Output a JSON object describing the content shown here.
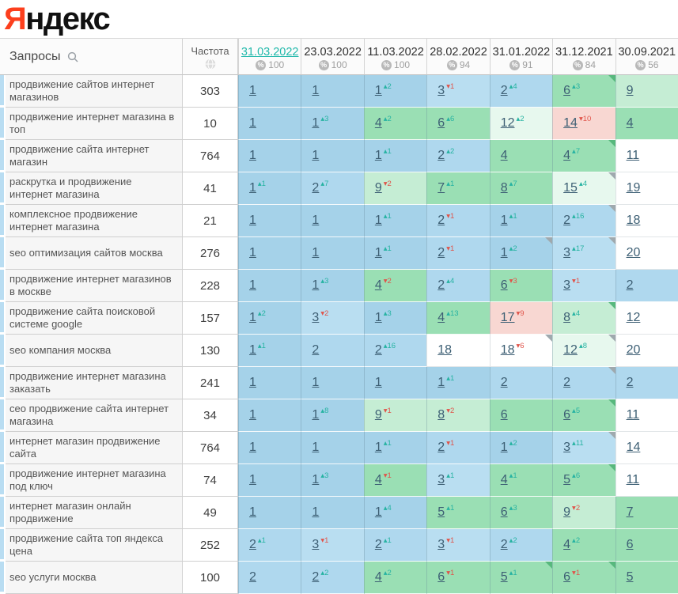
{
  "logo": {
    "letter_accent": "Я",
    "letter_rest": "ндекс"
  },
  "colors": {
    "accent_date_link": "#1fb8aa",
    "delta_up": "#26b3a2",
    "delta_down": "#e0544a",
    "cell_blue": "#a5d2e9",
    "cell_green": "#9adfb4",
    "cell_light_green": "#c5edd4",
    "cell_mint": "#e7f8ee",
    "cell_pink": "#f8d7d2",
    "logo_red": "#fc3f1d"
  },
  "icons": {
    "search": "magnifier",
    "frequency": "globe",
    "coverage": "percent-circle",
    "delta_up_glyph": "▴",
    "delta_down_glyph": "▾"
  },
  "table": {
    "query_header": "Запросы",
    "frequency_header": "Частота",
    "percent_symbol": "%",
    "date_columns": [
      {
        "date": "31.03.2022",
        "percent": "100",
        "active": true
      },
      {
        "date": "23.03.2022",
        "percent": "100",
        "active": false
      },
      {
        "date": "11.03.2022",
        "percent": "100",
        "active": false
      },
      {
        "date": "28.02.2022",
        "percent": "94",
        "active": false
      },
      {
        "date": "31.01.2022",
        "percent": "91",
        "active": false
      },
      {
        "date": "31.12.2021",
        "percent": "84",
        "active": false
      },
      {
        "date": "30.09.2021",
        "percent": "56",
        "active": false
      }
    ],
    "rows": [
      {
        "query": "продвижение сайтов интернет магазинов",
        "frequency": "303",
        "cells": [
          {
            "p": 1,
            "bg": "b1"
          },
          {
            "p": 1,
            "bg": "b1"
          },
          {
            "p": 1,
            "d": 2,
            "bg": "b1"
          },
          {
            "p": 3,
            "d": -1,
            "bg": "b3"
          },
          {
            "p": 2,
            "d": 4,
            "bg": "b2"
          },
          {
            "p": 6,
            "d": 3,
            "bg": "g",
            "corner": true
          },
          {
            "p": 9,
            "bg": "lg"
          }
        ]
      },
      {
        "query": "продвижение интернет магазина в топ",
        "frequency": "10",
        "cells": [
          {
            "p": 1,
            "bg": "b1"
          },
          {
            "p": 1,
            "d": 3,
            "bg": "b1"
          },
          {
            "p": 4,
            "d": 2,
            "bg": "g"
          },
          {
            "p": 6,
            "d": 6,
            "bg": "g"
          },
          {
            "p": 12,
            "d": 2,
            "bg": "ml"
          },
          {
            "p": 14,
            "d": -10,
            "bg": "pk"
          },
          {
            "p": 4,
            "bg": "g"
          }
        ]
      },
      {
        "query": "продвижение сайта интернет магазин",
        "frequency": "764",
        "cells": [
          {
            "p": 1,
            "bg": "b1"
          },
          {
            "p": 1,
            "bg": "b1"
          },
          {
            "p": 1,
            "d": 1,
            "bg": "b1"
          },
          {
            "p": 2,
            "d": 2,
            "bg": "b2"
          },
          {
            "p": 4,
            "bg": "g"
          },
          {
            "p": 4,
            "d": 7,
            "bg": "g",
            "corner": true
          },
          {
            "p": 11,
            "bg": "wh"
          }
        ]
      },
      {
        "query": "раскрутка и продвижение интернет магазина",
        "frequency": "41",
        "cells": [
          {
            "p": 1,
            "d": 1,
            "bg": "b1"
          },
          {
            "p": 2,
            "d": 7,
            "bg": "b2"
          },
          {
            "p": 9,
            "d": -2,
            "bg": "lg"
          },
          {
            "p": 7,
            "d": 1,
            "bg": "g"
          },
          {
            "p": 8,
            "d": 7,
            "bg": "g"
          },
          {
            "p": 15,
            "d": 4,
            "bg": "ml",
            "corner": true
          },
          {
            "p": 19,
            "bg": "wh"
          }
        ]
      },
      {
        "query": "комплексное продвижение интернет магазина",
        "frequency": "21",
        "cells": [
          {
            "p": 1,
            "bg": "b1"
          },
          {
            "p": 1,
            "bg": "b1"
          },
          {
            "p": 1,
            "d": 1,
            "bg": "b1"
          },
          {
            "p": 2,
            "d": -1,
            "bg": "b2"
          },
          {
            "p": 1,
            "d": 1,
            "bg": "b1"
          },
          {
            "p": 2,
            "d": 16,
            "bg": "b2",
            "corner": true
          },
          {
            "p": 18,
            "bg": "wh"
          }
        ]
      },
      {
        "query": "seo оптимизация сайтов москва",
        "frequency": "276",
        "cells": [
          {
            "p": 1,
            "bg": "b1"
          },
          {
            "p": 1,
            "bg": "b1"
          },
          {
            "p": 1,
            "d": 1,
            "bg": "b1"
          },
          {
            "p": 2,
            "d": -1,
            "bg": "b2"
          },
          {
            "p": 1,
            "d": 2,
            "bg": "b1",
            "corner": true
          },
          {
            "p": 3,
            "d": 17,
            "bg": "b3",
            "corner": true
          },
          {
            "p": 20,
            "bg": "wh"
          }
        ]
      },
      {
        "query": "продвижение интернет магазинов в москве",
        "frequency": "228",
        "cells": [
          {
            "p": 1,
            "bg": "b1"
          },
          {
            "p": 1,
            "d": 3,
            "bg": "b1"
          },
          {
            "p": 4,
            "d": -2,
            "bg": "g"
          },
          {
            "p": 2,
            "d": 4,
            "bg": "b2"
          },
          {
            "p": 6,
            "d": -3,
            "bg": "g"
          },
          {
            "p": 3,
            "d": -1,
            "bg": "b3"
          },
          {
            "p": 2,
            "bg": "b2"
          }
        ]
      },
      {
        "query": "продвижение сайта поисковой системе google",
        "frequency": "157",
        "cells": [
          {
            "p": 1,
            "d": 2,
            "bg": "b1"
          },
          {
            "p": 3,
            "d": -2,
            "bg": "b3"
          },
          {
            "p": 1,
            "d": 3,
            "bg": "b1"
          },
          {
            "p": 4,
            "d": 13,
            "bg": "g"
          },
          {
            "p": 17,
            "d": -9,
            "bg": "pk"
          },
          {
            "p": 8,
            "d": 4,
            "bg": "lg",
            "corner": true
          },
          {
            "p": 12,
            "bg": "wh"
          }
        ]
      },
      {
        "query": "seo компания москва",
        "frequency": "130",
        "cells": [
          {
            "p": 1,
            "d": 1,
            "bg": "b1"
          },
          {
            "p": 2,
            "bg": "b2"
          },
          {
            "p": 2,
            "d": 16,
            "bg": "b2"
          },
          {
            "p": 18,
            "bg": "wh"
          },
          {
            "p": 18,
            "d": -6,
            "bg": "wh",
            "corner": true
          },
          {
            "p": 12,
            "d": 8,
            "bg": "ml",
            "corner": true
          },
          {
            "p": 20,
            "bg": "wh"
          }
        ]
      },
      {
        "query": "продвижение интернет магазина заказать",
        "frequency": "241",
        "cells": [
          {
            "p": 1,
            "bg": "b1"
          },
          {
            "p": 1,
            "bg": "b1"
          },
          {
            "p": 1,
            "bg": "b1"
          },
          {
            "p": 1,
            "d": 1,
            "bg": "b1"
          },
          {
            "p": 2,
            "bg": "b2"
          },
          {
            "p": 2,
            "bg": "b2",
            "corner": true
          },
          {
            "p": 2,
            "bg": "b2"
          }
        ]
      },
      {
        "query": "сео продвижение сайта интернет магазина",
        "frequency": "34",
        "cells": [
          {
            "p": 1,
            "bg": "b1"
          },
          {
            "p": 1,
            "d": 8,
            "bg": "b1"
          },
          {
            "p": 9,
            "d": -1,
            "bg": "lg"
          },
          {
            "p": 8,
            "d": -2,
            "bg": "lg"
          },
          {
            "p": 6,
            "bg": "g"
          },
          {
            "p": 6,
            "d": 5,
            "bg": "g",
            "corner": true
          },
          {
            "p": 11,
            "bg": "wh"
          }
        ]
      },
      {
        "query": "интернет магазин продвижение сайта",
        "frequency": "764",
        "cells": [
          {
            "p": 1,
            "bg": "b1"
          },
          {
            "p": 1,
            "bg": "b1"
          },
          {
            "p": 1,
            "d": 1,
            "bg": "b1"
          },
          {
            "p": 2,
            "d": -1,
            "bg": "b2"
          },
          {
            "p": 1,
            "d": 2,
            "bg": "b1"
          },
          {
            "p": 3,
            "d": 11,
            "bg": "b3",
            "corner": true
          },
          {
            "p": 14,
            "bg": "wh"
          }
        ]
      },
      {
        "query": "продвижение интернет магазина под ключ",
        "frequency": "74",
        "cells": [
          {
            "p": 1,
            "bg": "b1"
          },
          {
            "p": 1,
            "d": 3,
            "bg": "b1"
          },
          {
            "p": 4,
            "d": -1,
            "bg": "g"
          },
          {
            "p": 3,
            "d": 1,
            "bg": "b3"
          },
          {
            "p": 4,
            "d": 1,
            "bg": "g"
          },
          {
            "p": 5,
            "d": 6,
            "bg": "g",
            "corner": true
          },
          {
            "p": 11,
            "bg": "wh"
          }
        ]
      },
      {
        "query": "интернет магазин онлайн продвижение",
        "frequency": "49",
        "cells": [
          {
            "p": 1,
            "bg": "b1"
          },
          {
            "p": 1,
            "bg": "b1"
          },
          {
            "p": 1,
            "d": 4,
            "bg": "b1"
          },
          {
            "p": 5,
            "d": 1,
            "bg": "g"
          },
          {
            "p": 6,
            "d": 3,
            "bg": "g"
          },
          {
            "p": 9,
            "d": -2,
            "bg": "lg"
          },
          {
            "p": 7,
            "bg": "g"
          }
        ]
      },
      {
        "query": "продвижение сайта топ яндекса цена",
        "frequency": "252",
        "cells": [
          {
            "p": 2,
            "d": 1,
            "bg": "b2"
          },
          {
            "p": 3,
            "d": -1,
            "bg": "b3"
          },
          {
            "p": 2,
            "d": 1,
            "bg": "b2"
          },
          {
            "p": 3,
            "d": -1,
            "bg": "b3"
          },
          {
            "p": 2,
            "d": 2,
            "bg": "b2"
          },
          {
            "p": 4,
            "d": 2,
            "bg": "g"
          },
          {
            "p": 6,
            "bg": "g"
          }
        ]
      },
      {
        "query": "seo услуги москва",
        "frequency": "100",
        "cells": [
          {
            "p": 2,
            "bg": "b2"
          },
          {
            "p": 2,
            "d": 2,
            "bg": "b2"
          },
          {
            "p": 4,
            "d": 2,
            "bg": "g"
          },
          {
            "p": 6,
            "d": -1,
            "bg": "g"
          },
          {
            "p": 5,
            "d": 1,
            "bg": "g",
            "corner": true
          },
          {
            "p": 6,
            "d": -1,
            "bg": "g",
            "corner": true
          },
          {
            "p": 5,
            "bg": "g"
          }
        ]
      }
    ]
  }
}
